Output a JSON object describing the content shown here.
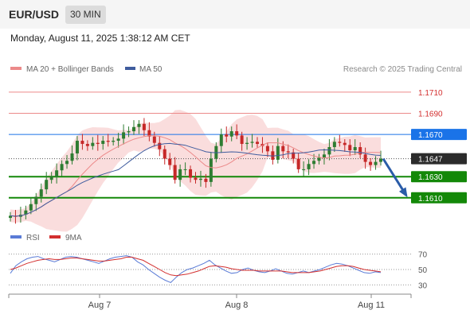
{
  "header": {
    "pair": "EUR/USD",
    "timeframe": "30 MIN",
    "timestamp": "Monday, August 11, 2025 1:38:12 AM CET"
  },
  "legend": {
    "ma20_label": "MA 20 + Bollinger Bands",
    "ma50_label": "MA 50",
    "credit": "Research © 2025 Trading Central"
  },
  "rsi_legend": {
    "rsi_label": "RSI",
    "ma_label": "9MA"
  },
  "colors": {
    "ma20": "#ec8a8a",
    "ma50": "#3f5c9e",
    "band_fill": "#f9d9d9",
    "resistance": "#ec8a8a",
    "pivot": "#1a73e8",
    "support": "#138808",
    "current": "#333333",
    "bull": "#2e7d32",
    "bear": "#c62828",
    "rsi": "#5a7bd6",
    "rsi_ma": "#d32f2f"
  },
  "chart_data": [
    {
      "type": "candlestick",
      "title": "",
      "x_tick_labels": [
        "Aug 7",
        "Aug 8",
        "Aug 11"
      ],
      "y_range": [
        1.1585,
        1.1725
      ],
      "levels": [
        {
          "value": 1.171,
          "label": "1.1710",
          "kind": "resistance"
        },
        {
          "value": 1.169,
          "label": "1.1690",
          "kind": "resistance"
        },
        {
          "value": 1.167,
          "label": "1.1670",
          "kind": "pivot"
        },
        {
          "value": 1.1647,
          "label": "1.1647",
          "kind": "current"
        },
        {
          "value": 1.163,
          "label": "1.1630",
          "kind": "support"
        },
        {
          "value": 1.161,
          "label": "1.1610",
          "kind": "support"
        }
      ],
      "close_series_approx": [
        1.1593,
        1.1592,
        1.1594,
        1.1598,
        1.1604,
        1.1611,
        1.1618,
        1.1627,
        1.163,
        1.1636,
        1.1642,
        1.1645,
        1.1652,
        1.1664,
        1.1661,
        1.1659,
        1.1662,
        1.1661,
        1.1664,
        1.1663,
        1.1664,
        1.1666,
        1.1672,
        1.1673,
        1.1677,
        1.168,
        1.1674,
        1.1668,
        1.1662,
        1.1656,
        1.1647,
        1.1641,
        1.1627,
        1.1637,
        1.1637,
        1.1629,
        1.1627,
        1.1628,
        1.1625,
        1.1647,
        1.1659,
        1.167,
        1.1668,
        1.1673,
        1.1669,
        1.1661,
        1.1662,
        1.1663,
        1.1661,
        1.1659,
        1.1654,
        1.1646,
        1.1659,
        1.1654,
        1.1653,
        1.1647,
        1.1637,
        1.1637,
        1.1642,
        1.1645,
        1.1648,
        1.1651,
        1.1658,
        1.1663,
        1.1662,
        1.166,
        1.1655,
        1.1658,
        1.1651,
        1.1644,
        1.1641,
        1.1644,
        1.1647
      ],
      "forecast": {
        "from": 1.1647,
        "to": 1.161,
        "direction": "down"
      }
    },
    {
      "type": "line",
      "title": "",
      "y_range": [
        20,
        80
      ],
      "y_ticks": [
        70,
        50,
        30
      ],
      "series": [
        {
          "name": "RSI",
          "values": [
            45,
            55,
            60,
            64,
            66,
            67,
            64,
            62,
            60,
            63,
            66,
            67,
            66,
            64,
            62,
            60,
            58,
            61,
            64,
            66,
            67,
            68,
            66,
            60,
            56,
            50,
            45,
            40,
            36,
            33,
            40,
            46,
            50,
            52,
            55,
            58,
            62,
            56,
            52,
            48,
            45,
            46,
            50,
            52,
            49,
            47,
            46,
            48,
            51,
            48,
            45,
            44,
            46,
            48,
            46,
            48,
            50,
            53,
            56,
            58,
            57,
            55,
            52,
            49,
            46,
            45,
            47,
            46
          ]
        },
        {
          "name": "9MA",
          "values": [
            50,
            52,
            55,
            58,
            60,
            62,
            63,
            64,
            63,
            63,
            64,
            65,
            65,
            64,
            63,
            62,
            61,
            61,
            62,
            63,
            64,
            66,
            66,
            64,
            62,
            58,
            54,
            50,
            46,
            43,
            42,
            43,
            44,
            46,
            48,
            51,
            54,
            55,
            54,
            53,
            51,
            50,
            49,
            49,
            49,
            48,
            48,
            48,
            48,
            48,
            47,
            46,
            46,
            46,
            46,
            47,
            48,
            50,
            52,
            54,
            55,
            55,
            54,
            52,
            50,
            49,
            48,
            47
          ]
        }
      ]
    }
  ]
}
